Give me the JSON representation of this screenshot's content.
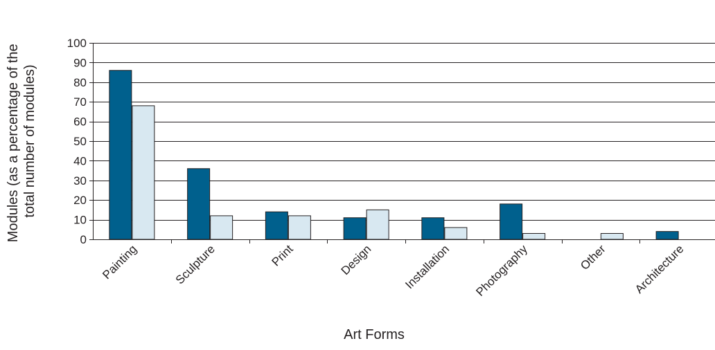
{
  "chart_data": {
    "type": "bar",
    "title": "",
    "xlabel": "Art Forms",
    "ylabel_lines": [
      "Modules (as a percentage of the",
      "total number of modules)"
    ],
    "categories": [
      "Painting",
      "Sculpture",
      "Print",
      "Design",
      "Installation",
      "Photography",
      "Other",
      "Architecture"
    ],
    "series": [
      {
        "values": [
          86,
          36,
          14,
          11,
          11,
          18,
          0,
          4
        ],
        "color": "#00608d"
      },
      {
        "values": [
          68,
          12,
          12,
          15,
          6,
          3,
          3,
          0
        ],
        "color": "#d8e8f1"
      }
    ],
    "ylim": [
      0,
      100
    ],
    "yticks": [
      0,
      10,
      20,
      30,
      40,
      50,
      60,
      70,
      80,
      90,
      100
    ],
    "grid": true,
    "legend": "none"
  }
}
